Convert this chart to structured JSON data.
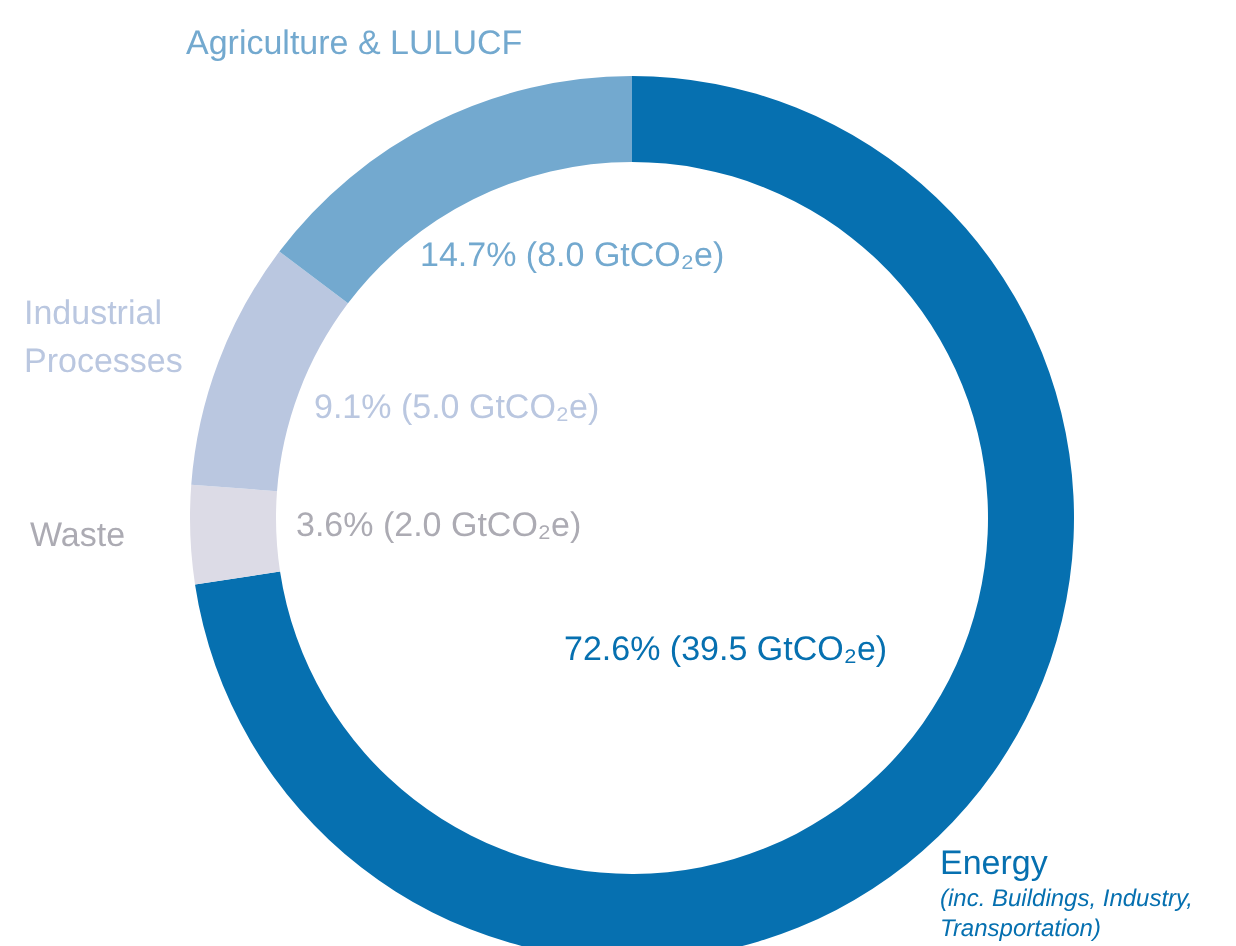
{
  "chart_data": {
    "type": "donut",
    "categories": [
      "Energy",
      "Waste",
      "Industrial Processes",
      "Agriculture & LULUCF"
    ],
    "values": [
      72.6,
      3.6,
      9.1,
      14.7
    ],
    "colors": [
      "#0670b0",
      "#dcdbe6",
      "#bac7e0",
      "#73a9cf"
    ],
    "value_labels": [
      "72.6% (39.5 GtCO₂e)",
      "3.6% (2.0 GtCO₂e)",
      "9.1% (5.0 GtCO₂e)",
      "14.7% (8.0 GtCO₂e)"
    ],
    "annotations": [
      "(inc. Buildings, Industry, Transportation)"
    ]
  }
}
